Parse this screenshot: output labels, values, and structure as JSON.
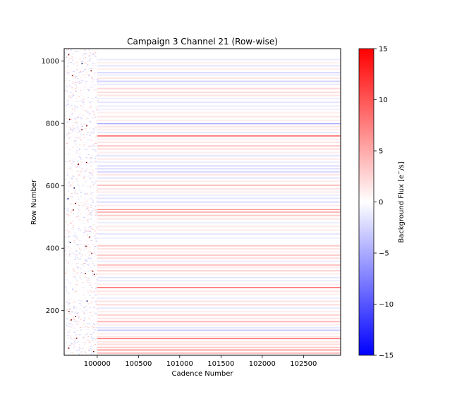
{
  "chart_data": {
    "type": "heatmap",
    "title": "Campaign 3 Channel 21 (Row-wise)",
    "xlabel": "Cadence Number",
    "ylabel": "Row Number",
    "xlim": [
      99600,
      102950
    ],
    "ylim": [
      57,
      1040
    ],
    "x_ticks": [
      100000,
      100500,
      101000,
      101500,
      102000,
      102500
    ],
    "y_ticks": [
      200,
      400,
      600,
      800,
      1000
    ],
    "noisy_region_end_x": 100000,
    "colorbar": {
      "label": "Background Flux [e$^-$/s]",
      "range": [
        -15,
        15
      ],
      "ticks": [
        15,
        10,
        5,
        0,
        -5,
        -10,
        -15
      ],
      "colormap": "bwr",
      "colors": {
        "low": "#0000ff",
        "mid": "#ffffff",
        "high": "#ff0000"
      }
    },
    "row_bands": [
      {
        "row": 1005,
        "value": -1.2
      },
      {
        "row": 995,
        "value": 0.8
      },
      {
        "row": 985,
        "value": -1.5
      },
      {
        "row": 975,
        "value": 1.0
      },
      {
        "row": 963,
        "value": -2.0
      },
      {
        "row": 955,
        "value": -1.0
      },
      {
        "row": 945,
        "value": 1.5
      },
      {
        "row": 935,
        "value": -2.5
      },
      {
        "row": 925,
        "value": -1.2
      },
      {
        "row": 912,
        "value": 2.2
      },
      {
        "row": 900,
        "value": 2.0
      },
      {
        "row": 890,
        "value": 1.5
      },
      {
        "row": 880,
        "value": -1.0
      },
      {
        "row": 868,
        "value": -1.5
      },
      {
        "row": 856,
        "value": -1.0
      },
      {
        "row": 845,
        "value": -0.8
      },
      {
        "row": 835,
        "value": 1.0
      },
      {
        "row": 822,
        "value": 1.5
      },
      {
        "row": 810,
        "value": 1.0
      },
      {
        "row": 799,
        "value": -6.0
      },
      {
        "row": 790,
        "value": 1.5
      },
      {
        "row": 781,
        "value": 1.0
      },
      {
        "row": 771,
        "value": -1.2
      },
      {
        "row": 760,
        "value": 12.0
      },
      {
        "row": 750,
        "value": 1.0
      },
      {
        "row": 740,
        "value": 1.5
      },
      {
        "row": 728,
        "value": 3.0
      },
      {
        "row": 718,
        "value": 2.0
      },
      {
        "row": 707,
        "value": 1.0
      },
      {
        "row": 697,
        "value": -1.5
      },
      {
        "row": 686,
        "value": 1.2
      },
      {
        "row": 676,
        "value": -1.0
      },
      {
        "row": 664,
        "value": -2.0
      },
      {
        "row": 655,
        "value": -1.8
      },
      {
        "row": 645,
        "value": -2.2
      },
      {
        "row": 636,
        "value": 1.5
      },
      {
        "row": 625,
        "value": -1.5
      },
      {
        "row": 615,
        "value": 1.0
      },
      {
        "row": 602,
        "value": 3.5
      },
      {
        "row": 590,
        "value": 1.5
      },
      {
        "row": 580,
        "value": 1.2
      },
      {
        "row": 570,
        "value": -1.0
      },
      {
        "row": 560,
        "value": -1.5
      },
      {
        "row": 548,
        "value": -1.8
      },
      {
        "row": 537,
        "value": 1.2
      },
      {
        "row": 524,
        "value": 7.0
      },
      {
        "row": 516,
        "value": 4.0
      },
      {
        "row": 505,
        "value": 3.0
      },
      {
        "row": 494,
        "value": 1.5
      },
      {
        "row": 482,
        "value": -1.0
      },
      {
        "row": 470,
        "value": 1.2
      },
      {
        "row": 458,
        "value": 1.0
      },
      {
        "row": 446,
        "value": -1.5
      },
      {
        "row": 432,
        "value": -0.8
      },
      {
        "row": 408,
        "value": 3.0
      },
      {
        "row": 398,
        "value": 1.5
      },
      {
        "row": 388,
        "value": 1.0
      },
      {
        "row": 378,
        "value": 3.0
      },
      {
        "row": 368,
        "value": 2.0
      },
      {
        "row": 358,
        "value": -1.0
      },
      {
        "row": 346,
        "value": 3.5
      },
      {
        "row": 338,
        "value": 1.2
      },
      {
        "row": 328,
        "value": 2.5
      },
      {
        "row": 318,
        "value": 1.0
      },
      {
        "row": 306,
        "value": -1.5
      },
      {
        "row": 296,
        "value": -1.0
      },
      {
        "row": 284,
        "value": 1.2
      },
      {
        "row": 274,
        "value": 12.0
      },
      {
        "row": 262,
        "value": 1.5
      },
      {
        "row": 252,
        "value": 1.0
      },
      {
        "row": 240,
        "value": -1.0
      },
      {
        "row": 230,
        "value": 1.5
      },
      {
        "row": 219,
        "value": 2.0
      },
      {
        "row": 208,
        "value": -1.2
      },
      {
        "row": 197,
        "value": 1.0
      },
      {
        "row": 186,
        "value": 2.5
      },
      {
        "row": 175,
        "value": 1.5
      },
      {
        "row": 165,
        "value": 4.0
      },
      {
        "row": 155,
        "value": 1.0
      },
      {
        "row": 145,
        "value": -1.5
      },
      {
        "row": 137,
        "value": -3.0
      },
      {
        "row": 126,
        "value": 1.0
      },
      {
        "row": 116,
        "value": 1.5
      },
      {
        "row": 110,
        "value": 9.0
      },
      {
        "row": 100,
        "value": 1.5
      },
      {
        "row": 92,
        "value": 2.0
      },
      {
        "row": 82,
        "value": 3.0
      },
      {
        "row": 74,
        "value": 5.0
      },
      {
        "row": 64,
        "value": 3.5
      }
    ]
  }
}
